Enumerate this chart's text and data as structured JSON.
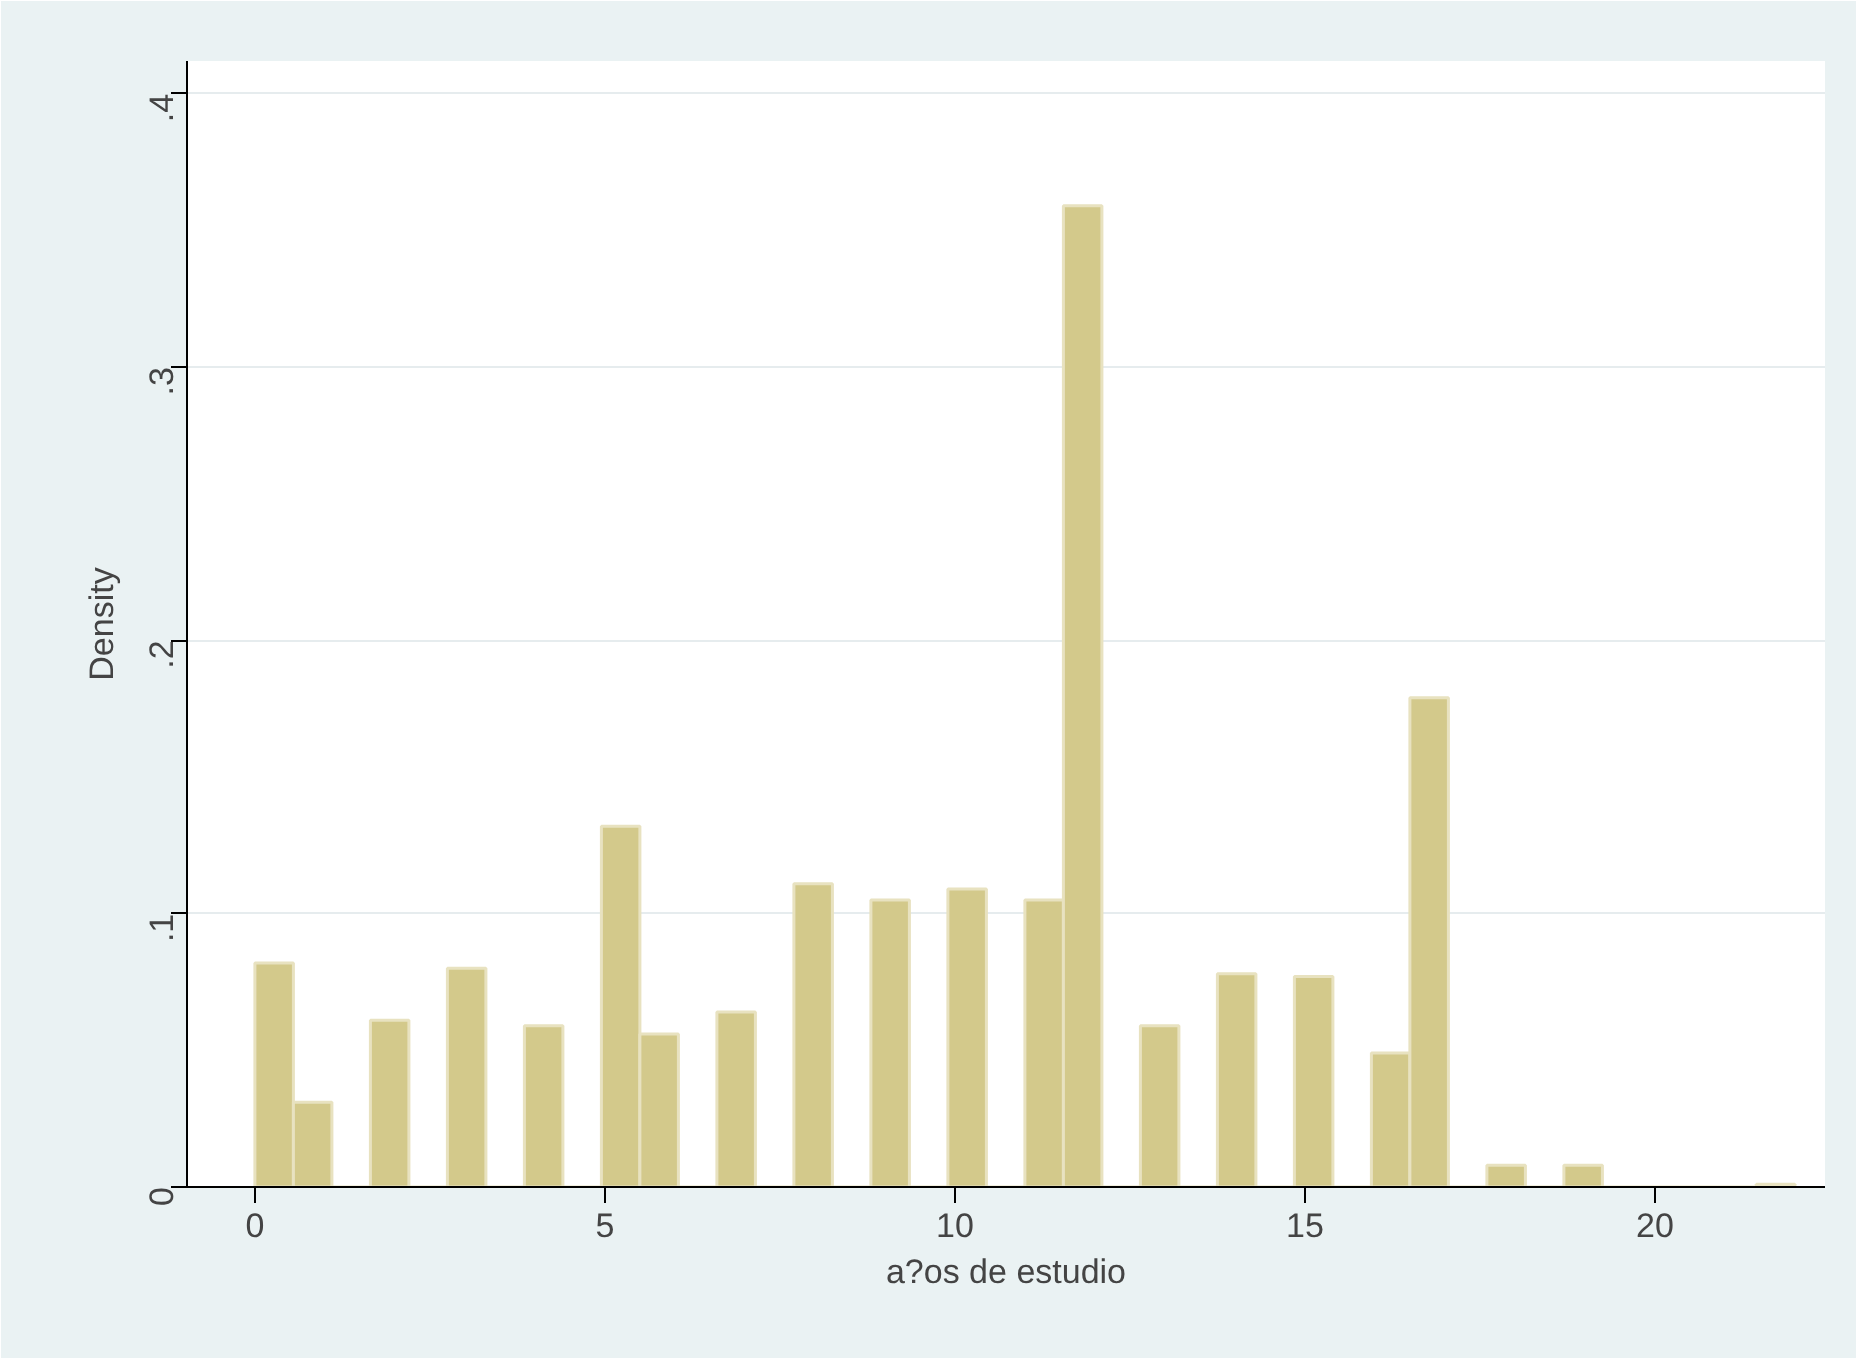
{
  "chart_data": {
    "type": "histogram",
    "xlabel": "a?os de estudio",
    "ylabel": "Density",
    "bins": [
      0,
      0.55,
      1.1,
      1.65,
      2.2,
      2.75,
      3.3,
      3.85,
      4.4,
      4.95,
      5.5,
      6.05,
      6.6,
      7.15,
      7.7,
      8.25,
      8.8,
      9.35,
      9.9,
      10.45,
      11,
      11.55,
      12.1,
      12.65,
      13.2,
      13.75,
      14.3,
      14.85,
      15.4,
      15.95,
      16.5,
      17.05,
      17.6,
      18.15,
      18.7,
      19.25,
      19.8,
      20.35,
      20.9,
      21.45,
      22
    ],
    "values": [
      0.082,
      0.031,
      0,
      0.061,
      0,
      0.08,
      0,
      0.059,
      0,
      0.132,
      0.056,
      0,
      0.064,
      0,
      0.111,
      0,
      0.105,
      0,
      0.109,
      0,
      0.105,
      0.359,
      0,
      0.059,
      0,
      0.078,
      0,
      0.077,
      0,
      0.049,
      0.179,
      0,
      0.008,
      0,
      0.008,
      0,
      0,
      0,
      0,
      0.001
    ],
    "color": "#d3c98b",
    "xlim": [
      -0.97,
      22.43
    ],
    "ylim": [
      0,
      0.412
    ],
    "xticks": [
      0,
      5,
      10,
      15,
      20
    ],
    "yticks": [
      {
        "value": 0,
        "label": "0"
      },
      {
        "value": 0.1,
        "label": ".1"
      },
      {
        "value": 0.2,
        "label": ".2"
      },
      {
        "value": 0.3,
        "label": ".3"
      },
      {
        "value": 0.4,
        "label": ".4"
      }
    ],
    "grid": "y"
  }
}
